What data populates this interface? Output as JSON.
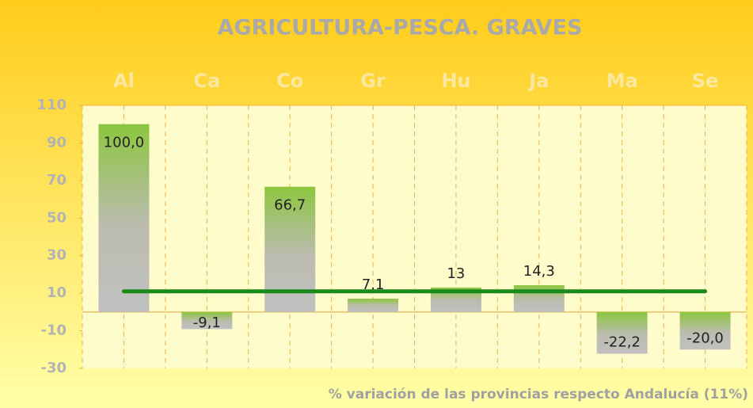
{
  "chart_data": {
    "type": "bar",
    "title": "AGRICULTURA-PESCA. GRAVES",
    "x_label": "% variación de las provincias respecto Andalucía (11%)",
    "categories": [
      "Al",
      "Ca",
      "Co",
      "Gr",
      "Hu",
      "Ja",
      "Ma",
      "Se"
    ],
    "values": [
      100,
      -9.1,
      66.7,
      7.1,
      13,
      14.3,
      -22.2,
      -20
    ],
    "value_labels": [
      "100,0",
      "-9,1",
      "66,7",
      "7,1",
      "13",
      "14,3",
      "-22,2",
      "-20,0"
    ],
    "reference_value": 11,
    "reference_color": "#1a8a1a",
    "color": "#8cc63f",
    "ylim": [
      -30,
      110
    ],
    "yticks": [
      -30,
      -10,
      10,
      30,
      50,
      70,
      90,
      110
    ],
    "grid": false
  }
}
